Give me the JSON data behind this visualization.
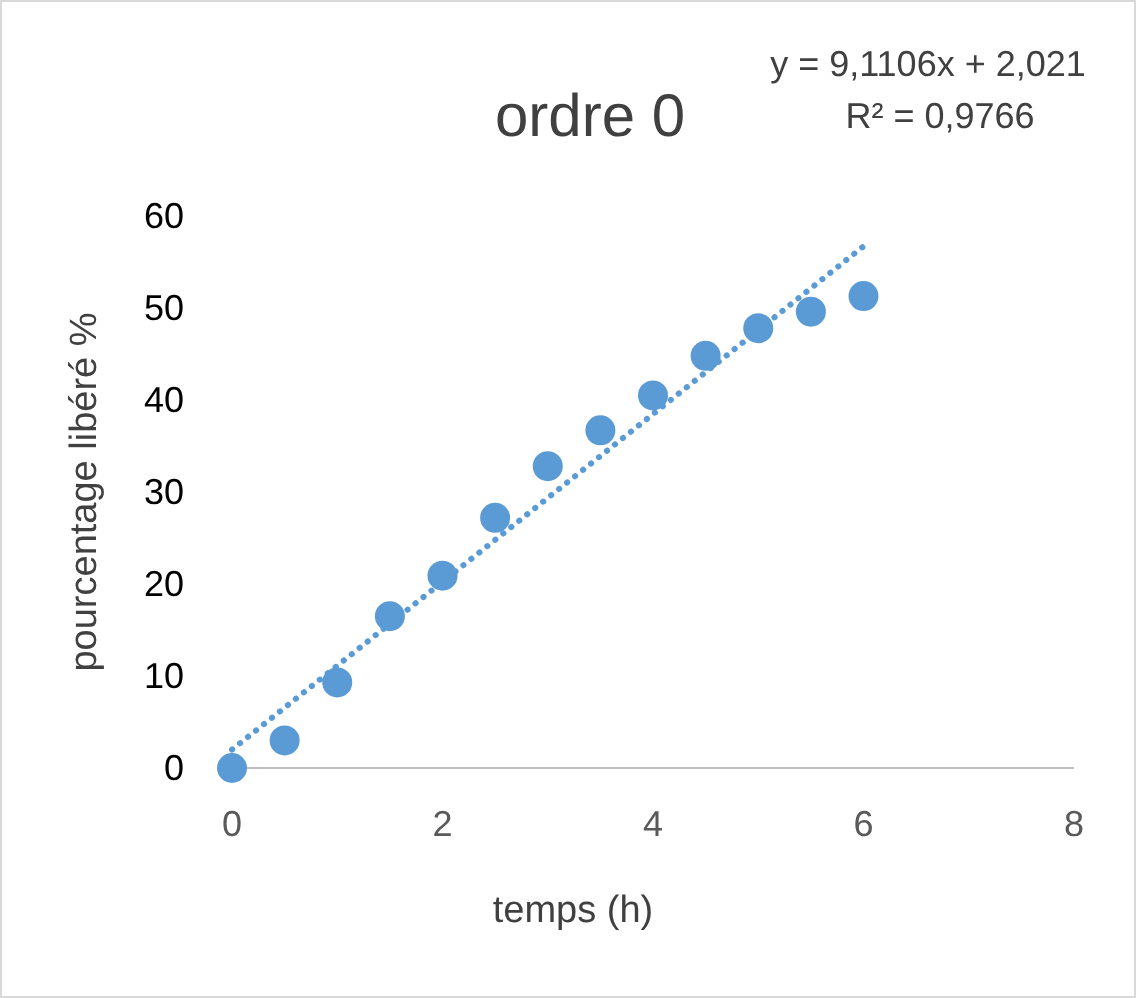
{
  "chart_data": {
    "type": "scatter",
    "title": "ordre 0",
    "xlabel": "temps (h)",
    "ylabel": "pourcentage libéré %",
    "annotations": [
      "y = 9,1106x + 2,021",
      "R² = 0,9766"
    ],
    "xlim": [
      0,
      8
    ],
    "xticks": [
      0,
      2,
      4,
      6,
      8
    ],
    "ylim": [
      0,
      60
    ],
    "yticks": [
      0,
      10,
      20,
      30,
      40,
      50,
      60
    ],
    "grid": false,
    "series": [
      {
        "color": "#5b9bd5",
        "marker": "circle",
        "x": [
          0,
          0.5,
          1,
          1.5,
          2,
          2.5,
          3,
          3.5,
          4,
          4.5,
          5,
          5.5,
          6
        ],
        "values": [
          0,
          3.0,
          9.3,
          16.5,
          20.9,
          27.2,
          32.8,
          36.7,
          40.5,
          44.8,
          47.8,
          49.6,
          51.3
        ]
      },
      {
        "type": "line",
        "color": "#5b9bd5",
        "line_style": "dotted",
        "x": [
          0,
          6
        ],
        "values": [
          2.0,
          56.7
        ]
      }
    ]
  }
}
